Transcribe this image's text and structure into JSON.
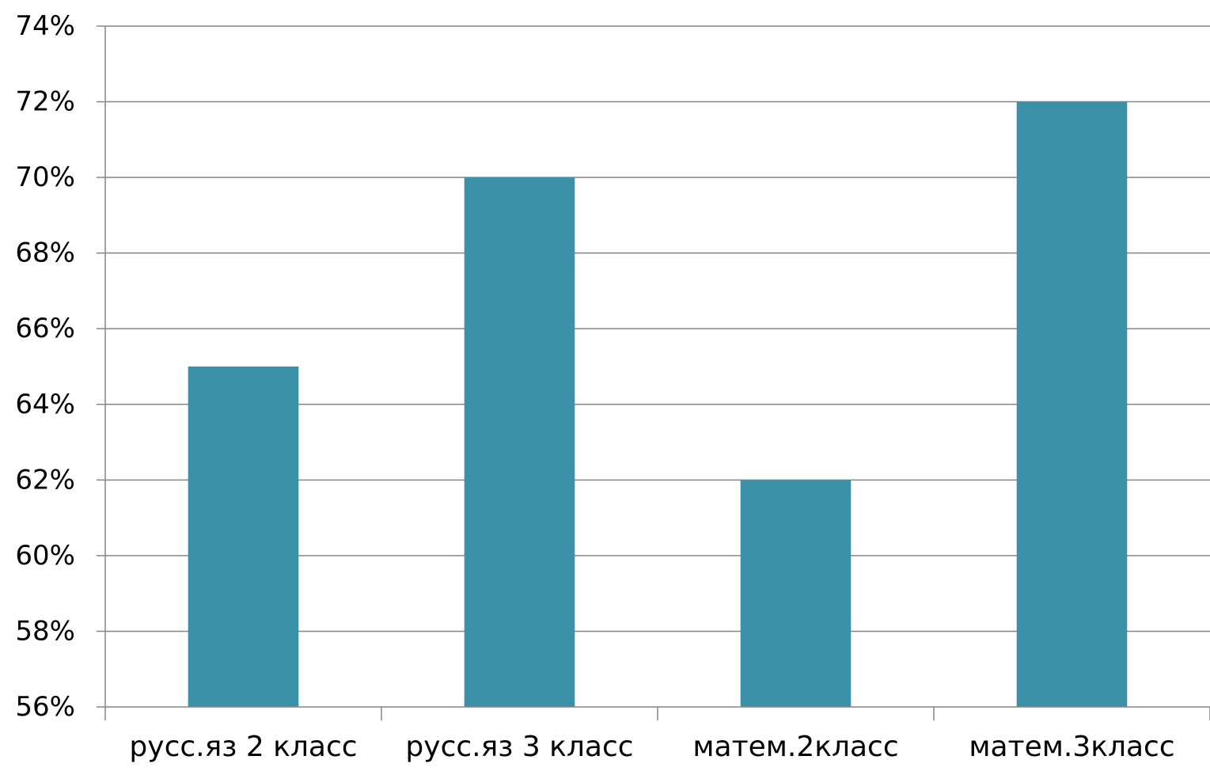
{
  "chart_data": {
    "type": "bar",
    "categories": [
      "русс.яз 2 класс",
      "русс.яз 3 класс",
      "матем.2класс",
      "матем.3класс"
    ],
    "values": [
      65,
      70,
      62,
      72
    ],
    "value_unit": "%",
    "ylim": [
      56,
      74
    ],
    "ystep": 2,
    "yticks": [
      "56%",
      "58%",
      "60%",
      "62%",
      "64%",
      "66%",
      "68%",
      "70%",
      "72%",
      "74%"
    ],
    "grid": true,
    "legend": "none",
    "title": "",
    "xlabel": "",
    "ylabel": "",
    "colors": {
      "bar": "#3A91A8",
      "grid": "#868686",
      "axis": "#868686"
    }
  }
}
